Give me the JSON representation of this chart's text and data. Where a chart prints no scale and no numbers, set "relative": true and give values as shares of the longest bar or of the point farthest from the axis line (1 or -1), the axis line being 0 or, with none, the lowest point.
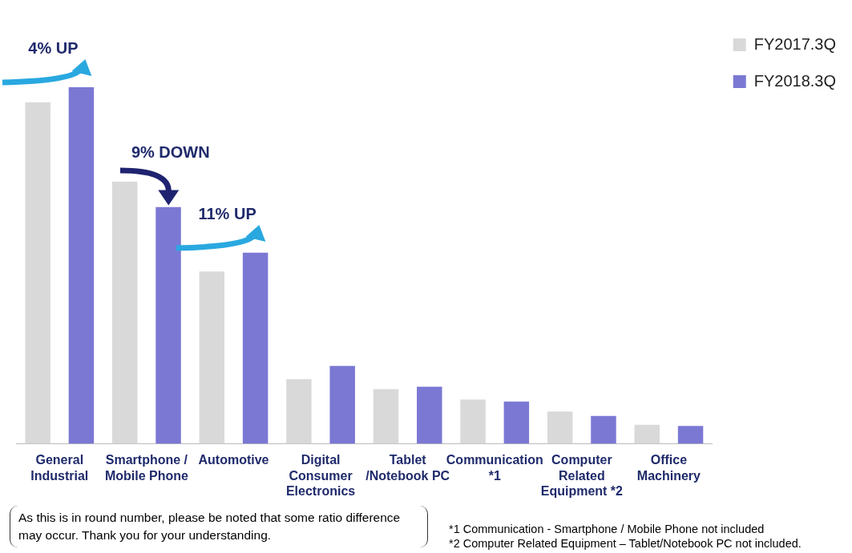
{
  "chart_data": {
    "type": "bar",
    "relative": true,
    "legend": "top right",
    "categories": [
      "General Industrial",
      "Smartphone / Mobile Phone",
      "Automotive",
      "Digital Consumer Electronics",
      "Tablet /Notebook PC",
      "Communication *1",
      "Computer Related Equipment *2",
      "Office Machinery"
    ],
    "series": [
      {
        "name": "FY2017.3Q",
        "color": "#d9d9d9",
        "values": [
          0.958,
          0.735,
          0.483,
          0.181,
          0.153,
          0.124,
          0.09,
          0.053
        ]
      },
      {
        "name": "FY2018.3Q",
        "color": "#7b78d4",
        "values": [
          1,
          0.664,
          0.536,
          0.218,
          0.16,
          0.118,
          0.078,
          0.05
        ]
      }
    ],
    "annotations": [
      "4% UP",
      "9% DOWN",
      "11% UP",
      "As this is in round number, please be noted that some ratio difference may occur. Thank you for your understanding.",
      "*1 Communication -  Smartphone / Mobile Phone not included",
      "*2 Computer Related Equipment – Tablet/Notebook PC not included."
    ]
  }
}
